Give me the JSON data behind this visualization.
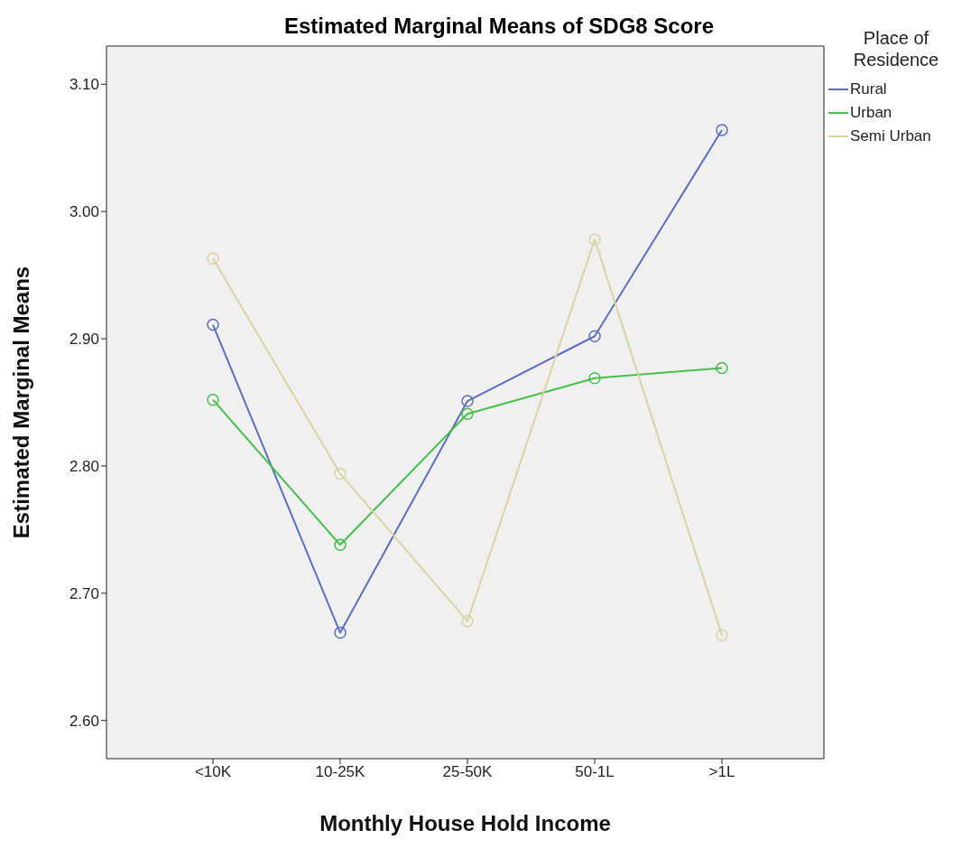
{
  "chart_data": {
    "type": "line",
    "title": "Estimated Marginal Means of SDG8 Score",
    "xlabel": "Monthly House Hold Income",
    "ylabel": "Estimated Marginal Means",
    "legend_title": "Place of Residence",
    "categories": [
      "<10K",
      "10-25K",
      "25-50K",
      "50-1L",
      ">1L"
    ],
    "series": [
      {
        "name": "Rural",
        "color": "#5b6fc2",
        "values": [
          2.911,
          2.669,
          2.851,
          2.902,
          3.064
        ]
      },
      {
        "name": "Urban",
        "color": "#45c04a",
        "values": [
          2.852,
          2.738,
          2.841,
          2.869,
          2.877
        ]
      },
      {
        "name": "Semi Urban",
        "color": "#d9d4a3",
        "values": [
          2.963,
          2.794,
          2.678,
          2.978,
          2.667
        ]
      }
    ],
    "ylim": [
      2.57,
      3.13
    ],
    "yticks": [
      {
        "value": 2.6,
        "label": "2.60"
      },
      {
        "value": 2.7,
        "label": "2.70"
      },
      {
        "value": 2.8,
        "label": "2.80"
      },
      {
        "value": 2.9,
        "label": "2.90"
      },
      {
        "value": 3.0,
        "label": "3.00"
      },
      {
        "value": 3.1,
        "label": "3.10"
      }
    ],
    "grid": false,
    "legend": "top right",
    "marker": "circle",
    "line_style": "solid"
  }
}
